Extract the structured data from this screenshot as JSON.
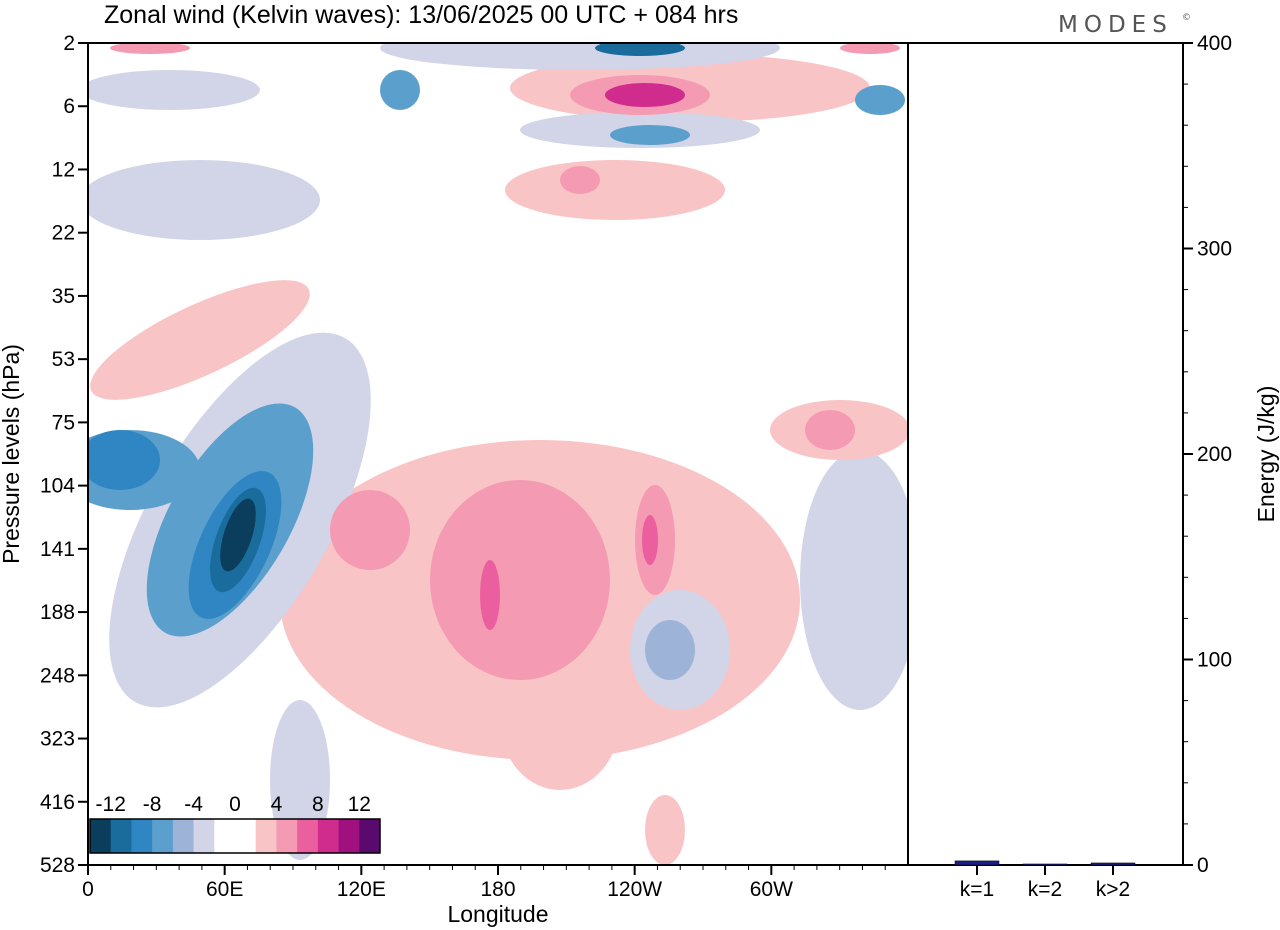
{
  "chart_data": {
    "type": "heatmap",
    "title": "Zonal wind (Kelvin waves):  13/06/2025  00 UTC  + 084 hrs",
    "brand": "MODES",
    "brand_mark": "©",
    "xlabel": "Longitude",
    "ylabel": "Pressure levels (hPa)",
    "x_ticks": [
      "0",
      "60E",
      "120E",
      "180",
      "120W",
      "60W"
    ],
    "y_ticks": [
      "2",
      "6",
      "12",
      "22",
      "35",
      "53",
      "75",
      "104",
      "141",
      "188",
      "248",
      "323",
      "416",
      "528"
    ],
    "colorbar": {
      "labels": [
        "-12",
        "-8",
        "-4",
        "0",
        "4",
        "8",
        "12"
      ],
      "colors": [
        "#0b3d5c",
        "#1a6c9c",
        "#2f86c2",
        "#5b9fcc",
        "#9db4d8",
        "#d2d4e8",
        "#ffffff",
        "#ffffff",
        "#f9c4c6",
        "#f59ab3",
        "#ec5f9f",
        "#cf2c8d",
        "#a0117f",
        "#5a0a6e"
      ]
    },
    "features": [
      {
        "sign": "neg",
        "level": 5,
        "lon": 20,
        "p": 8,
        "dlon": 40,
        "dlev": 1.5
      },
      {
        "sign": "neg",
        "level": 4,
        "lon": 97,
        "p": 10,
        "dlon": 60,
        "dlev": 1.2
      },
      {
        "sign": "pos",
        "level": 3,
        "lon": 130,
        "p": 20,
        "dlon": 55,
        "dlev": 1.5
      },
      {
        "sign": "neg",
        "level": 5,
        "lon": 60,
        "p": 130,
        "dlon": 45,
        "dlev": 2.0
      },
      {
        "sign": "pos",
        "level": 3,
        "lon": 170,
        "p": 160,
        "dlon": 70,
        "dlev": 3.0
      },
      {
        "sign": "neg",
        "level": 3,
        "lon": 240,
        "p": 230,
        "dlon": 30,
        "dlev": 1.5
      }
    ],
    "energy_panel": {
      "ylabel": "Energy (J/kg)",
      "ylim": [
        0,
        400
      ],
      "y_ticks": [
        "0",
        "100",
        "200",
        "300",
        "400"
      ],
      "categories": [
        "k=1",
        "k=2",
        "k>2"
      ],
      "values": [
        2,
        0.5,
        1
      ],
      "bar_color": "#1b1b8a"
    }
  }
}
